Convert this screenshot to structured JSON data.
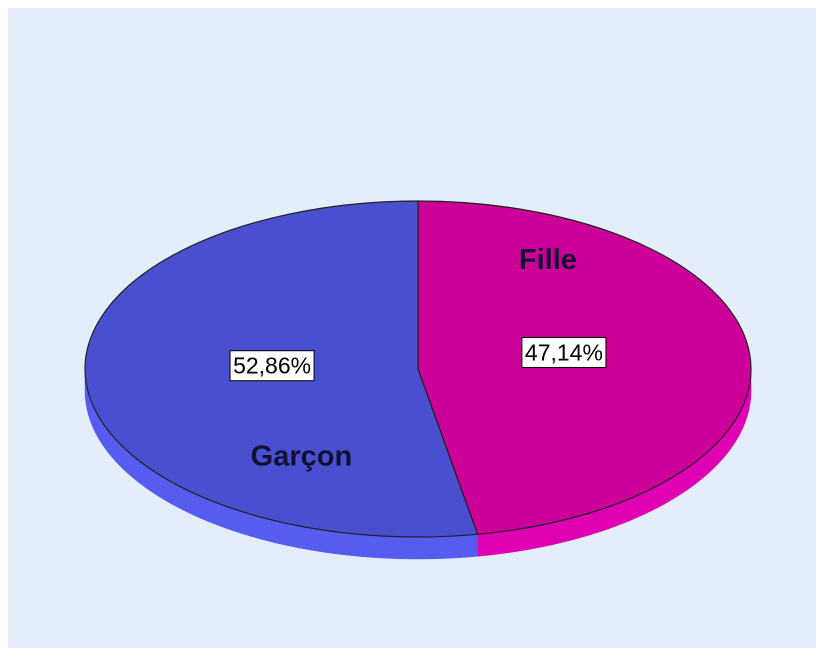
{
  "chart_data": {
    "type": "pie",
    "categories": [
      "Fille",
      "Garçon"
    ],
    "values": [
      47.14,
      52.86
    ],
    "value_labels": [
      "47,14%",
      "52,86%"
    ],
    "colors": [
      "#cc0099",
      "#4a4fcf"
    ],
    "side_colors": [
      "#e000b4",
      "#575cf0"
    ]
  }
}
